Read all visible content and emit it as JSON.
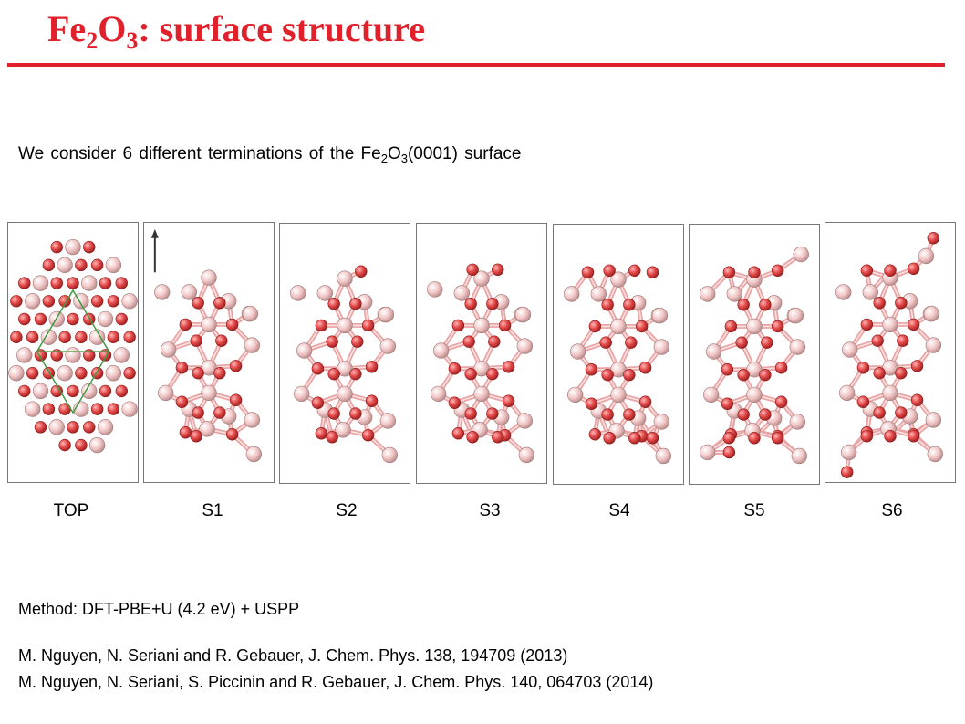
{
  "title": {
    "prefix": "Fe",
    "sub1": "2",
    "mid": "O",
    "sub2": "3",
    "suffix": ": surface structure"
  },
  "intro": {
    "prefix": "We consider 6 different terminations of the Fe",
    "sub1": "2",
    "mid": "O",
    "sub2": "3",
    "suffix": "(0001) surface"
  },
  "panels": [
    "TOP",
    "S1",
    "S2",
    "S3",
    "S4",
    "S5",
    "S6"
  ],
  "method": "Method: DFT-PBE+U (4.2 eV) + USPP",
  "references": [
    "M. Nguyen, N. Seriani and R. Gebauer, J. Chem. Phys. 138, 194709 (2013)",
    "M. Nguyen, N. Seriani, S. Piccinin and R. Gebauer, J. Chem. Phys. 140, 064703 (2014)"
  ],
  "colors": {
    "accent": "#e0202a",
    "fe_atom": "#f3c9c9",
    "o_atom": "#e44a4a"
  }
}
